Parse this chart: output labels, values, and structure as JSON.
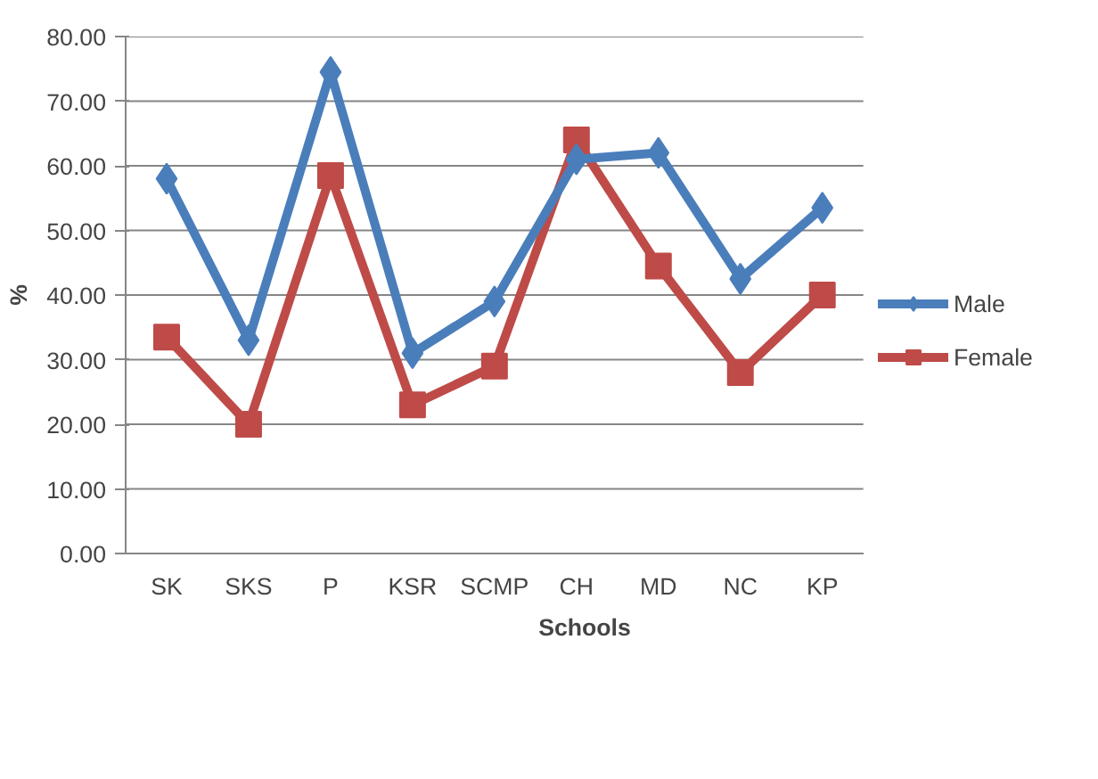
{
  "chart_data": {
    "type": "line",
    "xlabel": "Schools",
    "ylabel": "%",
    "categories": [
      "SK",
      "SKS",
      "P",
      "KSR",
      "SCMP",
      "CH",
      "MD",
      "NC",
      "KP"
    ],
    "series": [
      {
        "name": "Male",
        "color": "#4a7ebb",
        "values": [
          58,
          33,
          74.5,
          31,
          39,
          61,
          62,
          42.5,
          53.5
        ],
        "marker": "diamond"
      },
      {
        "name": "Female",
        "color": "#be4b48",
        "values": [
          33.5,
          20,
          58.5,
          23,
          29,
          64,
          44.5,
          28,
          40
        ],
        "marker": "square"
      }
    ],
    "ylim": [
      0,
      80
    ],
    "yticks": [
      {
        "value": 0,
        "label": "0.00"
      },
      {
        "value": 10,
        "label": "10.00"
      },
      {
        "value": 20,
        "label": "20.00"
      },
      {
        "value": 30,
        "label": "30.00"
      },
      {
        "value": 40,
        "label": "40.00"
      },
      {
        "value": 50,
        "label": "50.00"
      },
      {
        "value": 60,
        "label": "60.00"
      },
      {
        "value": 70,
        "label": "70.00"
      },
      {
        "value": 80,
        "label": "80.00"
      }
    ],
    "grid": "y",
    "legend": "right",
    "line_style": "solid"
  }
}
